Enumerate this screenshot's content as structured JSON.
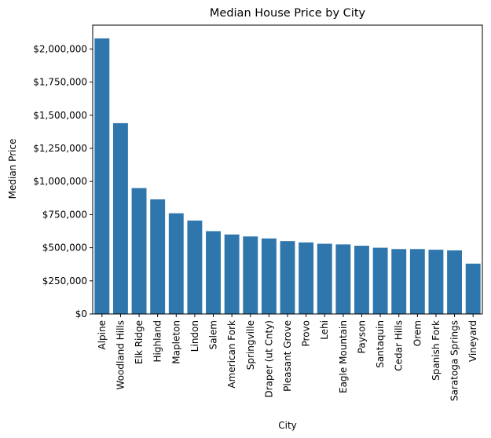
{
  "chart_data": {
    "type": "bar",
    "title": "Median House Price by City",
    "xlabel": "City",
    "ylabel": "Median Price",
    "categories": [
      "Alpine",
      "Woodland Hills",
      "Elk Ridge",
      "Highland",
      "Mapleton",
      "Lindon",
      "Salem",
      "American Fork",
      "Springville",
      "Draper (ut Cnty)",
      "Pleasant Grove",
      "Provo",
      "Lehi",
      "Eagle Mountain",
      "Payson",
      "Santaquin",
      "Cedar Hills",
      "Orem",
      "Spanish Fork",
      "Saratoga Springs",
      "Vineyard"
    ],
    "values": [
      2080000,
      1440000,
      950000,
      865000,
      760000,
      705000,
      625000,
      600000,
      585000,
      570000,
      550000,
      540000,
      530000,
      525000,
      515000,
      500000,
      490000,
      490000,
      485000,
      480000,
      380000
    ],
    "ylim": [
      0,
      2180000
    ],
    "yticks": [
      0,
      250000,
      500000,
      750000,
      1000000,
      1250000,
      1500000,
      1750000,
      2000000
    ],
    "ytick_labels": [
      "$0",
      "$250,000",
      "$500,000",
      "$750,000",
      "$1,000,000",
      "$1,250,000",
      "$1,500,000",
      "$1,750,000",
      "$2,000,000"
    ],
    "grid": false,
    "color": "#2f76ad"
  }
}
